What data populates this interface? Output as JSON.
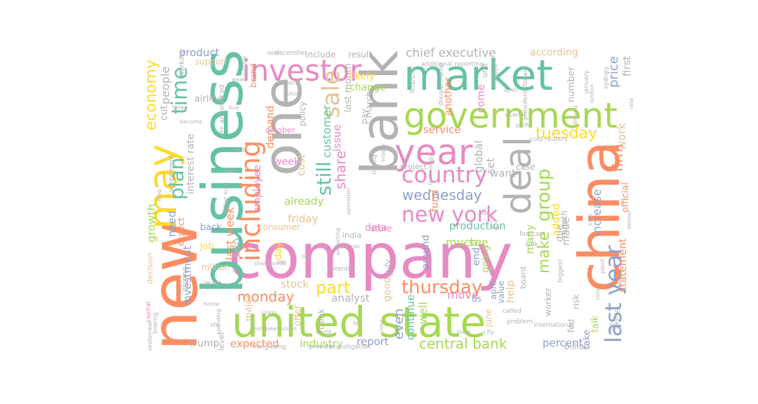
{
  "palette": {
    "teal": "#66c2a5",
    "orange": "#fc8d62",
    "blue": "#8da0cb",
    "pink": "#e78ac3",
    "green": "#a6d854",
    "yellow": "#ffd92f",
    "tan": "#e5c494",
    "gray": "#b3b3b3"
  },
  "words": [
    {
      "text": "company",
      "color": "#e78ac3"
    },
    {
      "text": "united state",
      "color": "#a6d854"
    },
    {
      "text": "market",
      "color": "#66c2a5"
    },
    {
      "text": "business",
      "color": "#66c2a5"
    },
    {
      "text": "new",
      "color": "#fc8d62"
    },
    {
      "text": "china",
      "color": "#fc8d62"
    },
    {
      "text": "bank",
      "color": "#b3b3b3"
    },
    {
      "text": "government",
      "color": "#a6d854"
    },
    {
      "text": "one",
      "color": "#b3b3b3"
    },
    {
      "text": "may",
      "color": "#ffd92f"
    },
    {
      "text": "year",
      "color": "#e78ac3"
    },
    {
      "text": "deal",
      "color": "#b3b3b3"
    },
    {
      "text": "investor",
      "color": "#e78ac3"
    },
    {
      "text": "last year",
      "color": "#8da0cb"
    },
    {
      "text": "country",
      "color": "#e78ac3"
    },
    {
      "text": "including",
      "color": "#fc8d62"
    },
    {
      "text": "time",
      "color": "#66c2a5"
    },
    {
      "text": "plan",
      "color": "#66c2a5"
    },
    {
      "text": "sale",
      "color": "#e5c494"
    },
    {
      "text": "new york",
      "color": "#e78ac3"
    },
    {
      "text": "thursday",
      "color": "#fc8d62"
    },
    {
      "text": "central bank",
      "color": "#a6d854"
    },
    {
      "text": "group",
      "color": "#a6d854"
    },
    {
      "text": "still",
      "color": "#66c2a5"
    },
    {
      "text": "tuesday",
      "color": "#ffd92f"
    },
    {
      "text": "wednesday",
      "color": "#8da0cb"
    },
    {
      "text": "part",
      "color": "#ffd92f"
    },
    {
      "text": "economy",
      "color": "#ffd92f"
    },
    {
      "text": "monday",
      "color": "#fc8d62"
    },
    {
      "text": "make",
      "color": "#a6d854"
    },
    {
      "text": "expected",
      "color": "#fc8d62"
    },
    {
      "text": "industry",
      "color": "#a6d854"
    },
    {
      "text": "chief executive",
      "color": "#b3b3b3"
    },
    {
      "text": "share",
      "color": "#e78ac3"
    },
    {
      "text": "customer",
      "color": "#66c2a5"
    },
    {
      "text": "product",
      "color": "#8da0cb"
    },
    {
      "text": "according",
      "color": "#e5c494"
    },
    {
      "text": "people",
      "color": "#b3b3b3"
    },
    {
      "text": "interest rate",
      "color": "#b3b3b3"
    },
    {
      "text": "growth",
      "color": "#a6d854"
    },
    {
      "text": "investment",
      "color": "#8da0cb"
    },
    {
      "text": "last week",
      "color": "#fc8d62"
    },
    {
      "text": "stock",
      "color": "#e5c494"
    },
    {
      "text": "analyst",
      "color": "#b3b3b3"
    },
    {
      "text": "price",
      "color": "#8da0cb"
    },
    {
      "text": "first",
      "color": "#b3b3b3"
    },
    {
      "text": "work",
      "color": "#e5c494"
    },
    {
      "text": "firm",
      "color": "#fc8d62"
    },
    {
      "text": "increase",
      "color": "#8da0cb"
    },
    {
      "text": "official",
      "color": "#fc8d62"
    },
    {
      "text": "statement",
      "color": "#fc8d62"
    },
    {
      "text": "percent",
      "color": "#8da0cb"
    },
    {
      "text": "report",
      "color": "#8da0cb"
    },
    {
      "text": "even",
      "color": "#8da0cb"
    },
    {
      "text": "continue",
      "color": "#66c2a5"
    },
    {
      "text": "well",
      "color": "#a6d854"
    },
    {
      "text": "production",
      "color": "#66c2a5"
    },
    {
      "text": "much",
      "color": "#a6d854"
    },
    {
      "text": "see",
      "color": "#a6d854"
    },
    {
      "text": "move",
      "color": "#e78ac3"
    },
    {
      "text": "end",
      "color": "#8da0cb"
    },
    {
      "text": "going",
      "color": "#a6d854"
    },
    {
      "text": "help",
      "color": "#e5c494"
    },
    {
      "text": "many",
      "color": "#a6d854"
    },
    {
      "text": "added",
      "color": "#ffd92f"
    },
    {
      "text": "made",
      "color": "#b3b3b3"
    },
    {
      "text": "global",
      "color": "#b3b3b3"
    },
    {
      "text": "set",
      "color": "#b3b3b3"
    },
    {
      "text": "want",
      "color": "#b3b3b3"
    },
    {
      "text": "service",
      "color": "#fc8d62"
    },
    {
      "text": "already",
      "color": "#a6d854"
    },
    {
      "text": "friday",
      "color": "#e5c494"
    },
    {
      "text": "employee",
      "color": "#e78ac3"
    },
    {
      "text": "cost",
      "color": "#e5c494"
    },
    {
      "text": "demand",
      "color": "#fc8d62"
    },
    {
      "text": "issue",
      "color": "#e78ac3"
    },
    {
      "text": "likely",
      "color": "#ffd92f"
    },
    {
      "text": "change",
      "color": "#a6d854"
    },
    {
      "text": "last month",
      "color": "#b3b3b3"
    },
    {
      "text": "week",
      "color": "#e78ac3"
    },
    {
      "text": "data",
      "color": "#e78ac3"
    },
    {
      "text": "fund",
      "color": "#fc8d62"
    },
    {
      "text": "good",
      "color": "#e5c494"
    },
    {
      "text": "around",
      "color": "#8da0cb"
    },
    {
      "text": "come",
      "color": "#e78ac3"
    },
    {
      "text": "another",
      "color": "#fc8d62"
    },
    {
      "text": "cut",
      "color": "#b3b3b3"
    },
    {
      "text": "need",
      "color": "#8da0cb"
    },
    {
      "text": "expect",
      "color": "#fc8d62"
    },
    {
      "text": "back",
      "color": "#8da0cb"
    },
    {
      "text": "job",
      "color": "#ffd92f"
    },
    {
      "text": "million",
      "color": "#e5c494"
    },
    {
      "text": "two",
      "color": "#b3b3b3"
    },
    {
      "text": "day",
      "color": "#ffd92f"
    },
    {
      "text": "consumer",
      "color": "#e5c494"
    },
    {
      "text": "trump",
      "color": "#b3b3b3"
    },
    {
      "text": "major",
      "color": "#e5c494"
    },
    {
      "text": "offer",
      "color": "#e5c494"
    },
    {
      "text": "think",
      "color": "#b3b3b3"
    },
    {
      "text": "airline",
      "color": "#b3b3b3"
    },
    {
      "text": "support",
      "color": "#e5c494"
    },
    {
      "text": "number",
      "color": "#b3b3b3"
    },
    {
      "text": "billion",
      "color": "#b3b3b3"
    },
    {
      "text": "take",
      "color": "#8da0cb"
    },
    {
      "text": "talk",
      "color": "#a6d854"
    },
    {
      "text": "risk",
      "color": "#b3b3b3"
    },
    {
      "text": "due",
      "color": "#b3b3b3"
    },
    {
      "text": "month",
      "color": "#b3b3b3"
    },
    {
      "text": "worker",
      "color": "#b3b3b3"
    },
    {
      "text": "include",
      "color": "#b3b3b3"
    },
    {
      "text": "result",
      "color": "#b3b3b3"
    },
    {
      "text": "march",
      "color": "#b3b3b3"
    },
    {
      "text": "pay",
      "color": "#b3b3b3"
    },
    {
      "text": "project",
      "color": "#b3b3b3"
    },
    {
      "text": "brand",
      "color": "#fc8d62"
    },
    {
      "text": "decision",
      "color": "#e5c494"
    },
    {
      "text": "strong",
      "color": "#b3b3b3"
    },
    {
      "text": "policy",
      "color": "#b3b3b3"
    },
    {
      "text": "july",
      "color": "#b3b3b3"
    },
    {
      "text": "june",
      "color": "#e5c494"
    },
    {
      "text": "april",
      "color": "#8da0cb"
    },
    {
      "text": "value",
      "color": "#8da0cb"
    },
    {
      "text": "case",
      "color": "#b3b3b3"
    },
    {
      "text": "fed",
      "color": "#b3b3b3"
    },
    {
      "text": "us",
      "color": "#8da0cb"
    },
    {
      "text": "store",
      "color": "#e78ac3"
    },
    {
      "text": "india",
      "color": "#b3b3b3"
    },
    {
      "text": "board",
      "color": "#b3b3b3"
    },
    {
      "text": "level",
      "color": "#b3b3b3"
    },
    {
      "text": "unit",
      "color": "#b3b3b3"
    },
    {
      "text": "state",
      "color": "#b3b3b3"
    },
    {
      "text": "october",
      "color": "#e78ac3"
    },
    {
      "text": "announced",
      "color": "#b3b3b3"
    },
    {
      "text": "working",
      "color": "#b3b3b3"
    },
    {
      "text": "agreement",
      "color": "#b3b3b3"
    },
    {
      "text": "capital",
      "color": "#e78ac3"
    },
    {
      "text": "boeing",
      "color": "#b3b3b3"
    },
    {
      "text": "investigation",
      "color": "#b3b3b3"
    },
    {
      "text": "provide",
      "color": "#b3b3b3"
    },
    {
      "text": "hong kong",
      "color": "#b3b3b3"
    },
    {
      "text": "president donald",
      "color": "#b3b3b3"
    },
    {
      "text": "donald trump",
      "color": "#b3b3b3"
    },
    {
      "text": "financial",
      "color": "#b3b3b3"
    },
    {
      "text": "saying",
      "color": "#b3b3b3"
    },
    {
      "text": "sydney",
      "color": "#b3b3b3"
    },
    {
      "text": "january",
      "color": "#b3b3b3"
    },
    {
      "text": "biggest",
      "color": "#b3b3b3"
    },
    {
      "text": "december",
      "color": "#b3b3b3"
    },
    {
      "text": "september",
      "color": "#b3b3b3"
    },
    {
      "text": "cold reuters",
      "color": "#b3b3b3"
    },
    {
      "text": "forecast",
      "color": "#b3b3b3"
    },
    {
      "text": "look",
      "color": "#b3b3b3"
    },
    {
      "text": "city",
      "color": "#b3b3b3"
    },
    {
      "text": "called",
      "color": "#b3b3b3"
    },
    {
      "text": "problem",
      "color": "#b3b3b3"
    },
    {
      "text": "international",
      "color": "#b3b3b3"
    },
    {
      "text": "potential",
      "color": "#b3b3b3"
    },
    {
      "text": "additional reporting",
      "color": "#b3b3b3"
    },
    {
      "text": "debt",
      "color": "#b3b3b3"
    },
    {
      "text": "ceo",
      "color": "#b3b3b3"
    },
    {
      "text": "put",
      "color": "#b3b3b3"
    },
    {
      "text": "buy",
      "color": "#b3b3b3"
    },
    {
      "text": "billion euro",
      "color": "#b3b3b3"
    },
    {
      "text": "expecting",
      "color": "#b3b3b3"
    },
    {
      "text": "american",
      "color": "#b3b3b3"
    },
    {
      "text": "technology",
      "color": "#b3b3b3"
    },
    {
      "text": "operation",
      "color": "#b3b3b3"
    },
    {
      "text": "european union",
      "color": "#b3b3b3"
    },
    {
      "text": "supply",
      "color": "#b3b3b3"
    },
    {
      "text": "recent",
      "color": "#b3b3b3"
    },
    {
      "text": "corp",
      "color": "#b3b3b3"
    },
    {
      "text": "high",
      "color": "#b3b3b3"
    },
    {
      "text": "shareholder",
      "color": "#b3b3b3"
    },
    {
      "text": "system",
      "color": "#b3b3b3"
    },
    {
      "text": "close",
      "color": "#b3b3b3"
    },
    {
      "text": "future",
      "color": "#b3b3b3"
    },
    {
      "text": "trading",
      "color": "#b3b3b3"
    },
    {
      "text": "become",
      "color": "#b3b3b3"
    },
    {
      "text": "euro",
      "color": "#b3b3b3"
    },
    {
      "text": "london",
      "color": "#b3b3b3"
    },
    {
      "text": "home",
      "color": "#b3b3b3"
    },
    {
      "text": "life",
      "color": "#b3b3b3"
    },
    {
      "text": "show",
      "color": "#b3b3b3"
    },
    {
      "text": "union",
      "color": "#b3b3b3"
    },
    {
      "text": "car",
      "color": "#b3b3b3"
    },
    {
      "text": "world",
      "color": "#b3b3b3"
    },
    {
      "text": "fell",
      "color": "#b3b3b3"
    },
    {
      "text": "top",
      "color": "#b3b3b3"
    },
    {
      "text": "sign",
      "color": "#b3b3b3"
    },
    {
      "text": "long",
      "color": "#b3b3b3"
    },
    {
      "text": "big",
      "color": "#b3b3b3"
    },
    {
      "text": "three",
      "color": "#b3b3b3"
    },
    {
      "text": "plant",
      "color": "#b3b3b3"
    },
    {
      "text": "rise",
      "color": "#b3b3b3"
    },
    {
      "text": "loss",
      "color": "#b3b3b3"
    },
    {
      "text": "deliver",
      "color": "#b3b3b3"
    },
    {
      "text": "open",
      "color": "#b3b3b3"
    },
    {
      "text": "among",
      "color": "#b3b3b3"
    },
    {
      "text": "meeting",
      "color": "#b3b3b3"
    },
    {
      "text": "quarter",
      "color": "#b3b3b3"
    },
    {
      "text": "profit",
      "color": "#b3b3b3"
    },
    {
      "text": "rate",
      "color": "#b3b3b3"
    },
    {
      "text": "week",
      "color": "#b3b3b3"
    },
    {
      "text": "spending",
      "color": "#b3b3b3"
    }
  ]
}
